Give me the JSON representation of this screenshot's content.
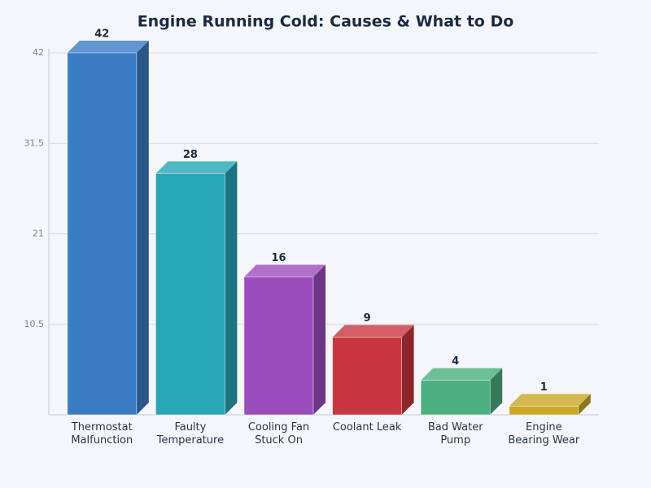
{
  "chart_data": {
    "type": "bar3d",
    "title": "Engine Running Cold: Causes & What to Do",
    "categories": [
      "Thermostat\nMalfunction",
      "Faulty\nTemperature",
      "Cooling Fan\nStuck On",
      "Coolant Leak",
      "Bad Water\nPump",
      "Engine\nBearing Wear"
    ],
    "values": [
      42,
      28,
      16,
      9,
      4,
      1
    ],
    "colors": [
      "#3a7cc4",
      "#27a6b5",
      "#9b4dbb",
      "#c8363f",
      "#4caf82",
      "#c9a827"
    ],
    "ylim": [
      0,
      42
    ],
    "yticks": [
      10.5,
      21,
      31.5,
      42
    ],
    "grid": true
  }
}
